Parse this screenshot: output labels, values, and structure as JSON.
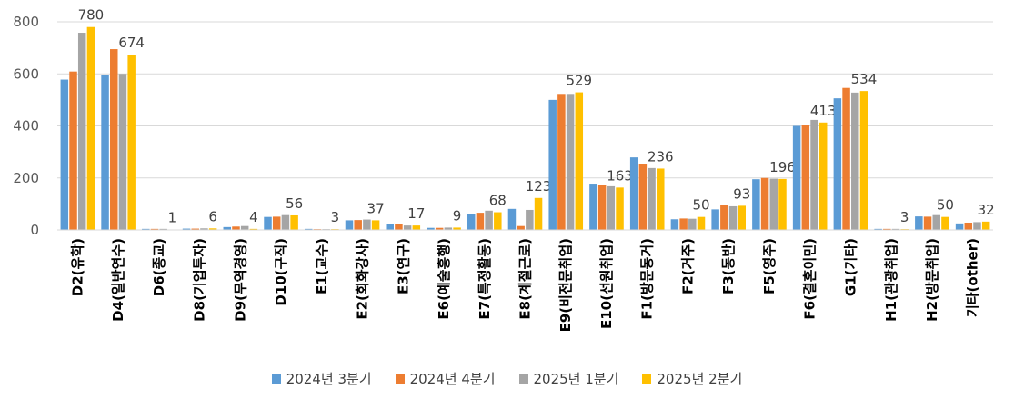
{
  "chart_data": {
    "type": "bar",
    "title": "",
    "xlabel": "",
    "ylabel": "",
    "ylim": [
      0,
      800
    ],
    "yticks": [
      0,
      200,
      400,
      600,
      800
    ],
    "grid": true,
    "legend_position": "bottom",
    "categories": [
      "D2(유학)",
      "D4(일반연수)",
      "D6(종교)",
      "D8(기업투자)",
      "D9(무역경영)",
      "D10(구직)",
      "E1(교수)",
      "E2(회화강사)",
      "E3(연구)",
      "E6(예술흥행)",
      "E7(특정활동)",
      "E8(계절근로)",
      "E9(비전문취업)",
      "E10(선원취업)",
      "F1(방문동거)",
      "F2(거주)",
      "F3(동반)",
      "F5(영주)",
      "F6(결혼이민)",
      "G1(기타)",
      "H1(관광취업)",
      "H2(방문취업)",
      "기타(other)"
    ],
    "series": [
      {
        "name": "2024년 3분기",
        "color": "#5B9BD5",
        "values": [
          578,
          595,
          4,
          5,
          11,
          50,
          4,
          37,
          22,
          8,
          60,
          81,
          500,
          178,
          279,
          41,
          79,
          195,
          400,
          506,
          4,
          52,
          25
        ]
      },
      {
        "name": "2024년 4분기",
        "color": "#ED7D31",
        "values": [
          609,
          695,
          4,
          5,
          13,
          51,
          3,
          38,
          21,
          8,
          66,
          15,
          523,
          172,
          255,
          44,
          97,
          200,
          404,
          546,
          4,
          51,
          28
        ]
      },
      {
        "name": "2025년 1분기",
        "color": "#A5A5A5",
        "values": [
          758,
          600,
          4,
          6,
          15,
          57,
          3,
          40,
          17,
          9,
          74,
          77,
          523,
          168,
          238,
          43,
          91,
          197,
          423,
          528,
          4,
          57,
          30
        ]
      },
      {
        "name": "2025년 2분기",
        "color": "#FFC000",
        "values": [
          780,
          674,
          1,
          6,
          4,
          56,
          3,
          37,
          17,
          9,
          68,
          123,
          529,
          163,
          236,
          50,
          93,
          196,
          413,
          534,
          3,
          50,
          32
        ]
      }
    ],
    "data_labels_series": "2025년 2분기"
  }
}
